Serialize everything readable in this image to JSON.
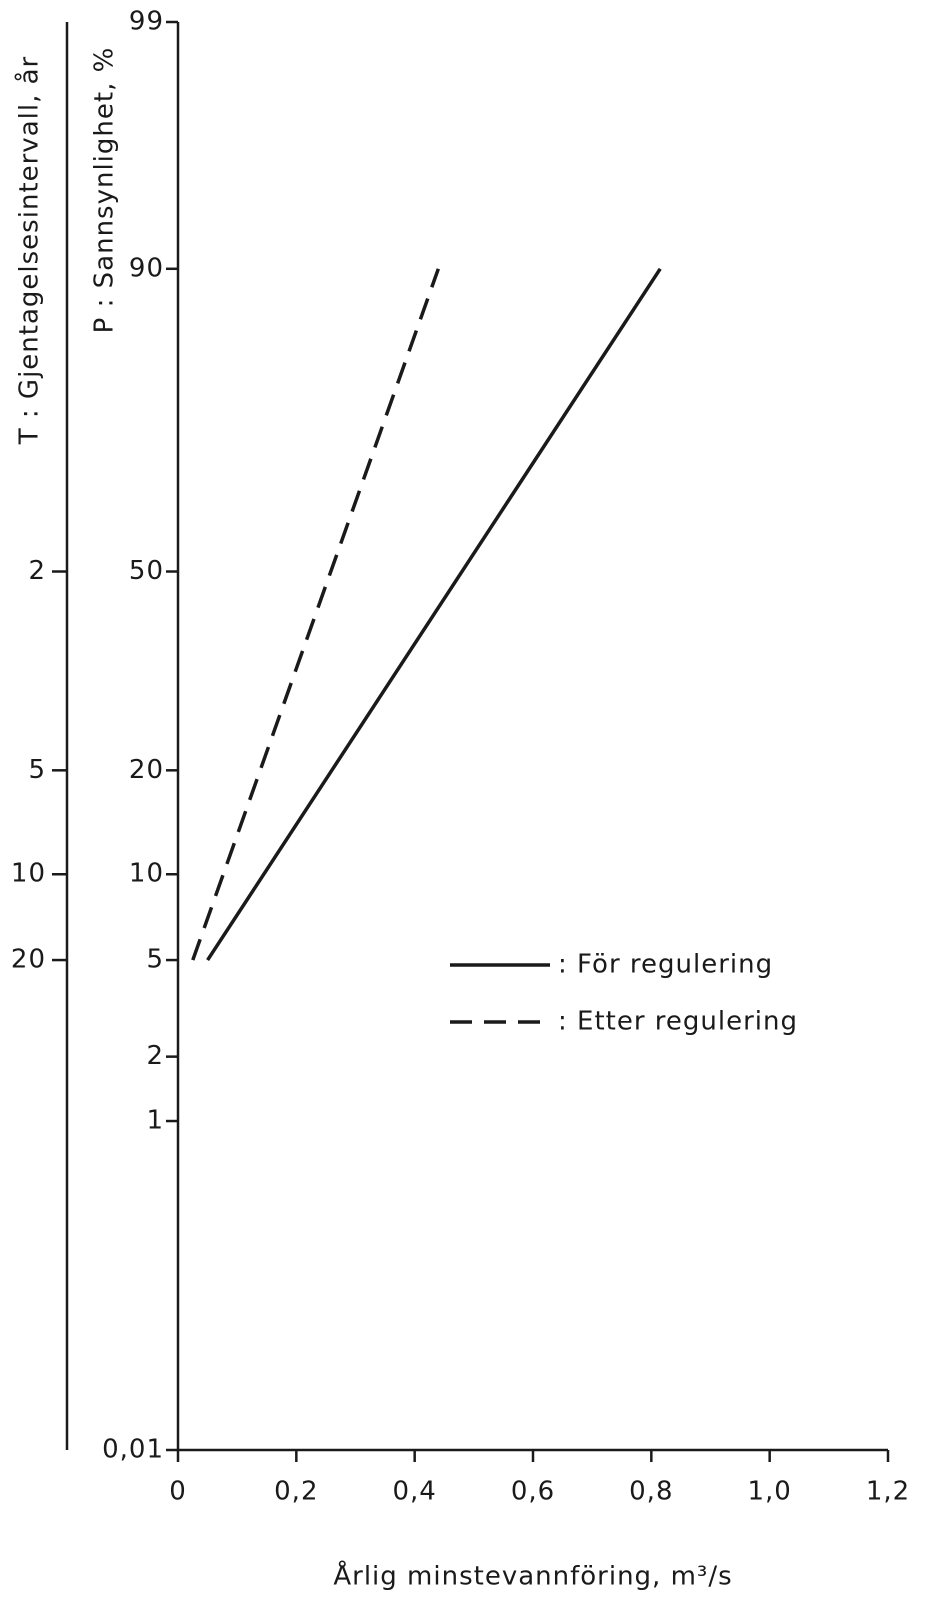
{
  "chart_data": {
    "type": "line",
    "xlabel": "Årlig minstevannföring,  m³/s",
    "ylabel": "P :  Sannsynlighet, %",
    "y2label": "T  : Gjentagelsesintervall, år",
    "yscale": "probability",
    "xlim": [
      0,
      1.2
    ],
    "xticks": [
      0,
      {
        "value": 0.2,
        "label": "0,2"
      },
      {
        "value": 0.4,
        "label": "0,4"
      },
      {
        "value": 0.6,
        "label": "0,6"
      },
      {
        "value": 0.8,
        "label": "0,8"
      },
      {
        "value": 1.0,
        "label": "1,0"
      },
      {
        "value": 1.2,
        "label": "1,2"
      }
    ],
    "ylim": [
      0.01,
      99
    ],
    "yticks": [
      {
        "value": 0.01,
        "label": "0,01"
      },
      1,
      2,
      5,
      10,
      20,
      50,
      90,
      99
    ],
    "y2lim": [
      10000,
      1.0101
    ],
    "y2ticks": [
      2,
      5,
      10,
      20
    ],
    "grid": false,
    "legend": "right",
    "series": [
      {
        "name": ": För regulering",
        "color": "#1a1a1a",
        "dash": "solid",
        "x": [
          0.05,
          0.815
        ],
        "values": [
          5,
          90
        ]
      },
      {
        "name": ": Etter regulering",
        "color": "#1a1a1a",
        "dash": "dashed",
        "x": [
          0.025,
          0.44
        ],
        "values": [
          5,
          90
        ]
      }
    ]
  }
}
